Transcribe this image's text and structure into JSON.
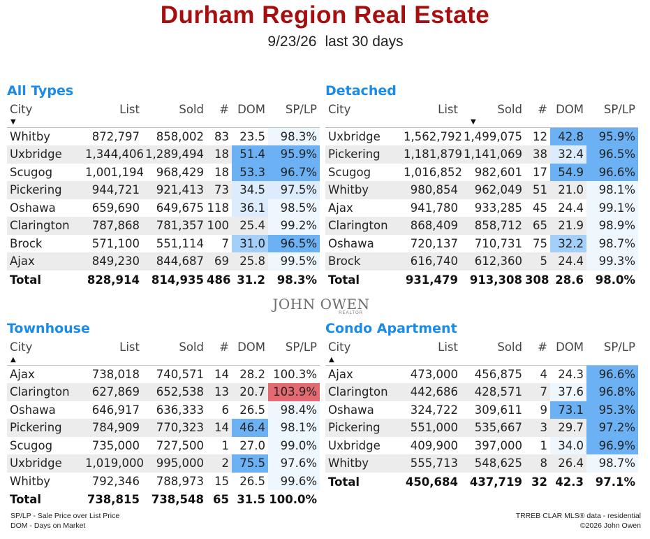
{
  "header": {
    "title": "Durham Region Real Estate",
    "date": "9/23/26",
    "period": "last 30 days"
  },
  "columns": {
    "city": "City",
    "list": "List",
    "sold": "Sold",
    "count": "#",
    "dom": "DOM",
    "splp": "SP/LP"
  },
  "panels": [
    {
      "title": "All Types",
      "sort_arrow": "down",
      "sort_column": "city",
      "rows": [
        {
          "city": "Whitby",
          "list": "872,797",
          "sold": "858,002",
          "count": "83",
          "dom": "23.5",
          "splp": "98.3%"
        },
        {
          "city": "Uxbridge",
          "list": "1,344,406",
          "sold": "1,289,494",
          "count": "18",
          "dom": "51.4",
          "splp": "95.9%"
        },
        {
          "city": "Scugog",
          "list": "1,001,194",
          "sold": "968,429",
          "count": "18",
          "dom": "53.3",
          "splp": "96.7%"
        },
        {
          "city": "Pickering",
          "list": "944,721",
          "sold": "921,413",
          "count": "73",
          "dom": "34.5",
          "splp": "97.5%"
        },
        {
          "city": "Oshawa",
          "list": "659,690",
          "sold": "649,675",
          "count": "118",
          "dom": "36.1",
          "splp": "98.5%"
        },
        {
          "city": "Clarington",
          "list": "787,868",
          "sold": "781,357",
          "count": "100",
          "dom": "25.4",
          "splp": "99.2%"
        },
        {
          "city": "Brock",
          "list": "571,100",
          "sold": "551,114",
          "count": "7",
          "dom": "31.0",
          "splp": "96.5%"
        },
        {
          "city": "Ajax",
          "list": "849,230",
          "sold": "844,687",
          "count": "69",
          "dom": "25.8",
          "splp": "99.5%"
        }
      ],
      "total": {
        "city": "Total",
        "list": "828,914",
        "sold": "814,935",
        "count": "486",
        "dom": "31.2",
        "splp": "98.3%"
      }
    },
    {
      "title": "Detached",
      "sort_arrow": "down",
      "sort_column": "list",
      "rows": [
        {
          "city": "Uxbridge",
          "list": "1,562,792",
          "sold": "1,499,075",
          "count": "12",
          "dom": "42.8",
          "splp": "95.9%"
        },
        {
          "city": "Pickering",
          "list": "1,181,879",
          "sold": "1,141,069",
          "count": "38",
          "dom": "32.4",
          "splp": "96.5%"
        },
        {
          "city": "Scugog",
          "list": "1,016,852",
          "sold": "982,601",
          "count": "17",
          "dom": "54.9",
          "splp": "96.6%"
        },
        {
          "city": "Whitby",
          "list": "980,854",
          "sold": "962,049",
          "count": "51",
          "dom": "21.0",
          "splp": "98.1%"
        },
        {
          "city": "Ajax",
          "list": "941,780",
          "sold": "933,285",
          "count": "45",
          "dom": "24.4",
          "splp": "99.1%"
        },
        {
          "city": "Clarington",
          "list": "868,409",
          "sold": "858,712",
          "count": "65",
          "dom": "21.9",
          "splp": "98.9%"
        },
        {
          "city": "Oshawa",
          "list": "720,137",
          "sold": "710,731",
          "count": "75",
          "dom": "32.2",
          "splp": "98.7%"
        },
        {
          "city": "Brock",
          "list": "616,740",
          "sold": "612,360",
          "count": "5",
          "dom": "24.4",
          "splp": "99.3%"
        }
      ],
      "total": {
        "city": "Total",
        "list": "931,479",
        "sold": "913,308",
        "count": "308",
        "dom": "28.6",
        "splp": "98.0%"
      }
    },
    {
      "title": "Townhouse",
      "sort_arrow": "up",
      "sort_column": "city",
      "rows": [
        {
          "city": "Ajax",
          "list": "738,018",
          "sold": "740,571",
          "count": "14",
          "dom": "28.2",
          "splp": "100.3%"
        },
        {
          "city": "Clarington",
          "list": "627,869",
          "sold": "652,538",
          "count": "13",
          "dom": "20.7",
          "splp": "103.9%"
        },
        {
          "city": "Oshawa",
          "list": "646,917",
          "sold": "636,333",
          "count": "6",
          "dom": "26.5",
          "splp": "98.4%"
        },
        {
          "city": "Pickering",
          "list": "784,909",
          "sold": "770,323",
          "count": "14",
          "dom": "46.4",
          "splp": "98.1%"
        },
        {
          "city": "Scugog",
          "list": "735,000",
          "sold": "727,500",
          "count": "1",
          "dom": "27.0",
          "splp": "99.0%"
        },
        {
          "city": "Uxbridge",
          "list": "1,019,000",
          "sold": "995,000",
          "count": "2",
          "dom": "75.5",
          "splp": "97.6%"
        },
        {
          "city": "Whitby",
          "list": "792,346",
          "sold": "788,973",
          "count": "15",
          "dom": "26.5",
          "splp": "99.6%"
        }
      ],
      "total": {
        "city": "Total",
        "list": "738,815",
        "sold": "738,548",
        "count": "65",
        "dom": "31.5",
        "splp": "100.0%"
      }
    },
    {
      "title": "Condo Apartment",
      "sort_arrow": "up",
      "sort_column": "city",
      "rows": [
        {
          "city": "Ajax",
          "list": "473,000",
          "sold": "456,875",
          "count": "4",
          "dom": "24.3",
          "splp": "96.6%"
        },
        {
          "city": "Clarington",
          "list": "442,686",
          "sold": "428,571",
          "count": "7",
          "dom": "37.6",
          "splp": "96.8%"
        },
        {
          "city": "Oshawa",
          "list": "324,722",
          "sold": "309,611",
          "count": "9",
          "dom": "73.1",
          "splp": "95.3%"
        },
        {
          "city": "Pickering",
          "list": "551,000",
          "sold": "535,667",
          "count": "3",
          "dom": "29.7",
          "splp": "97.2%"
        },
        {
          "city": "Uxbridge",
          "list": "409,900",
          "sold": "397,000",
          "count": "1",
          "dom": "34.0",
          "splp": "96.9%"
        },
        {
          "city": "Whitby",
          "list": "555,713",
          "sold": "548,625",
          "count": "8",
          "dom": "26.4",
          "splp": "98.7%"
        }
      ],
      "total": {
        "city": "Total",
        "list": "450,684",
        "sold": "437,719",
        "count": "32",
        "dom": "42.3",
        "splp": "97.1%"
      }
    }
  ],
  "heat_colors": {
    "strong_blue": "#6bb1f3",
    "mid_blue": "#a3cff8",
    "light_blue": "#dcecfd",
    "pale_blue": "#eef6fe",
    "red": "#e46a72"
  },
  "logo": {
    "name": "JOHN OWEN",
    "tagline": "REALTOR"
  },
  "footer": {
    "note1": "SP/LP - Sale Price over List Price",
    "note2": "DOM - Days on Market",
    "source": "TRREB CLAR MLS® data - residential",
    "copyright": "©2026 John Owen"
  }
}
